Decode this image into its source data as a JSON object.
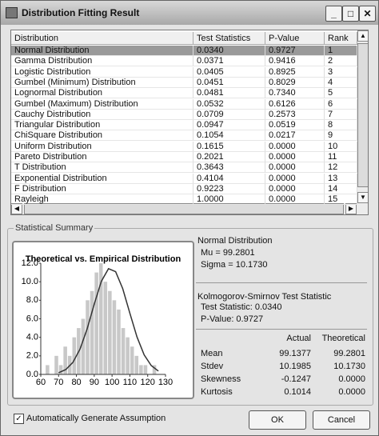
{
  "window": {
    "title": "Distribution Fitting Result"
  },
  "table": {
    "columns": [
      "Distribution",
      "Test Statistics",
      "P-Value",
      "Rank"
    ],
    "rows": [
      [
        "Normal Distribution",
        "0.0340",
        "0.9727",
        "1"
      ],
      [
        "Gamma Distribution",
        "0.0371",
        "0.9416",
        "2"
      ],
      [
        "Logistic Distribution",
        "0.0405",
        "0.8925",
        "3"
      ],
      [
        "Gumbel (Minimum) Distribution",
        "0.0451",
        "0.8029",
        "4"
      ],
      [
        "Lognormal Distribution",
        "0.0481",
        "0.7340",
        "5"
      ],
      [
        "Gumbel (Maximum) Distribution",
        "0.0532",
        "0.6126",
        "6"
      ],
      [
        "Cauchy Distribution",
        "0.0709",
        "0.2573",
        "7"
      ],
      [
        "Triangular Distribution",
        "0.0947",
        "0.0519",
        "8"
      ],
      [
        "ChiSquare Distribution",
        "0.1054",
        "0.0217",
        "9"
      ],
      [
        "Uniform Distribution",
        "0.1615",
        "0.0000",
        "10"
      ],
      [
        "Pareto Distribution",
        "0.2021",
        "0.0000",
        "11"
      ],
      [
        "T Distribution",
        "0.3643",
        "0.0000",
        "12"
      ],
      [
        "Exponential Distribution",
        "0.4104",
        "0.0000",
        "13"
      ],
      [
        "F Distribution",
        "0.9223",
        "0.0000",
        "14"
      ],
      [
        "Rayleigh",
        "1.0000",
        "0.0000",
        "15"
      ]
    ]
  },
  "summary": {
    "group_title": "Statistical Summary",
    "distribution": "Normal Distribution",
    "mu": "Mu = 99.2801",
    "sigma": "Sigma = 10.1730",
    "ks_title": "Kolmogorov-Smirnov Test Statistic",
    "ks_stat": "Test Statistic: 0.0340",
    "ks_p": "P-Value: 0.9727",
    "stats_columns": [
      "Actual",
      "Theoretical"
    ],
    "stats_rows": [
      [
        "Mean",
        "99.1377",
        "99.2801"
      ],
      [
        "Stdev",
        "10.1985",
        "10.1730"
      ],
      [
        "Skewness",
        "-0.1247",
        "0.0000"
      ],
      [
        "Kurtosis",
        "0.1014",
        "0.0000"
      ]
    ]
  },
  "chart": {
    "type": "histogram",
    "title": "Theoretical vs. Empirical Distribution",
    "bins": [
      62.5,
      65,
      67.5,
      70,
      72.5,
      75,
      77.5,
      80,
      82.5,
      85,
      87.5,
      90,
      92.5,
      95,
      97.5,
      100,
      102.5,
      105,
      107.5,
      110,
      112.5,
      115,
      117.5,
      120,
      122.5,
      125
    ],
    "counts": [
      1,
      0,
      2,
      1,
      3,
      2,
      4,
      5,
      6,
      8,
      9,
      11,
      12,
      10,
      9,
      8,
      7,
      5,
      4,
      3,
      2,
      1,
      1,
      0,
      1
    ],
    "color": "#c8c8c8",
    "curve": {
      "x": [
        70,
        74,
        78,
        82,
        86,
        90,
        94,
        98,
        102,
        106,
        110,
        114,
        118,
        122,
        126
      ],
      "y": [
        0.18,
        0.52,
        1.29,
        2.72,
        4.9,
        7.58,
        10.05,
        11.41,
        11.09,
        9.25,
        6.6,
        4.04,
        2.11,
        0.95,
        0.36
      ],
      "color": "#333333"
    },
    "xlim": [
      60,
      130
    ],
    "xticks": [
      60,
      70,
      80,
      90,
      100,
      110,
      120,
      130
    ],
    "ylim": [
      0,
      12
    ],
    "yticks": [
      {
        "value": 0,
        "label": "0.0"
      },
      {
        "value": 2,
        "label": "2.0"
      },
      {
        "value": 4,
        "label": "4.0"
      },
      {
        "value": 6,
        "label": "6.0"
      },
      {
        "value": 8,
        "label": "8.0"
      },
      {
        "value": 10,
        "label": "10.0"
      },
      {
        "value": 12,
        "label": "12.0"
      }
    ]
  },
  "controls": {
    "checkbox": "Automatically Generate Assumption",
    "ok": "OK",
    "cancel": "Cancel"
  }
}
